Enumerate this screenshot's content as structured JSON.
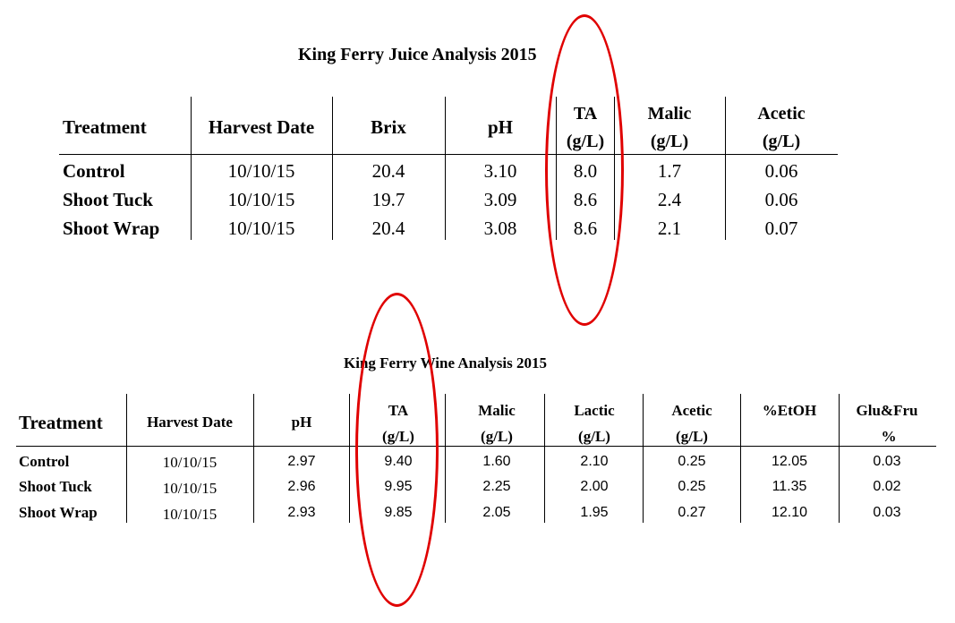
{
  "juice_table": {
    "title": "King Ferry Juice Analysis 2015",
    "headers": {
      "treatment": "Treatment",
      "harvest_date": "Harvest Date",
      "brix": "Brix",
      "ph": "pH",
      "ta_1": "TA",
      "ta_2": "(g/L)",
      "malic_1": "Malic",
      "malic_2": "(g/L)",
      "acetic_1": "Acetic",
      "acetic_2": "(g/L)"
    },
    "rows": [
      {
        "treatment": "Control",
        "harvest_date": "10/10/15",
        "brix": "20.4",
        "ph": "3.10",
        "ta": "8.0",
        "malic": "1.7",
        "acetic": "0.06"
      },
      {
        "treatment": "Shoot Tuck",
        "harvest_date": "10/10/15",
        "brix": "19.7",
        "ph": "3.09",
        "ta": "8.6",
        "malic": "2.4",
        "acetic": "0.06"
      },
      {
        "treatment": "Shoot Wrap",
        "harvest_date": "10/10/15",
        "brix": "20.4",
        "ph": "3.08",
        "ta": "8.6",
        "malic": "2.1",
        "acetic": "0.07"
      }
    ]
  },
  "wine_table": {
    "title": "King Ferry Wine Analysis 2015",
    "headers": {
      "treatment": "Treatment",
      "harvest_date": "Harvest Date",
      "ph": "pH",
      "ta_1": "TA",
      "ta_2": "(g/L)",
      "malic_1": "Malic",
      "malic_2": "(g/L)",
      "lactic_1": "Lactic",
      "lactic_2": "(g/L)",
      "acetic_1": "Acetic",
      "acetic_2": "(g/L)",
      "etoh": "%EtOH",
      "glufru_1": "Glu&Fru",
      "glufru_2": "%"
    },
    "rows": [
      {
        "treatment": "Control",
        "harvest_date": "10/10/15",
        "ph": "2.97",
        "ta": "9.40",
        "malic": "1.60",
        "lactic": "2.10",
        "acetic": "0.25",
        "etoh": "12.05",
        "glufru": "0.03"
      },
      {
        "treatment": "Shoot Tuck",
        "harvest_date": "10/10/15",
        "ph": "2.96",
        "ta": "9.95",
        "malic": "2.25",
        "lactic": "2.00",
        "acetic": "0.25",
        "etoh": "11.35",
        "glufru": "0.02"
      },
      {
        "treatment": "Shoot Wrap",
        "harvest_date": "10/10/15",
        "ph": "2.93",
        "ta": "9.85",
        "malic": "2.05",
        "lactic": "1.95",
        "acetic": "0.27",
        "etoh": "12.10",
        "glufru": "0.03"
      }
    ]
  },
  "annotation_color": "#e00000"
}
